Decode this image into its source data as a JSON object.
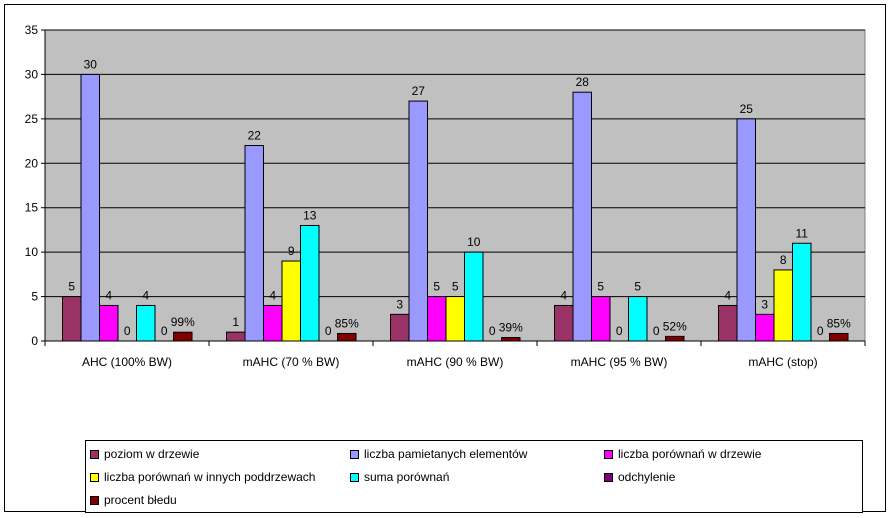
{
  "chart_data": {
    "type": "bar",
    "categories": [
      "AHC (100% BW)",
      "mAHC (70 % BW)",
      "mAHC (90 % BW)",
      "mAHC (95 % BW)",
      "mAHC (stop)"
    ],
    "ylim": [
      0,
      35
    ],
    "yticks": [
      0,
      5,
      10,
      15,
      20,
      25,
      30,
      35
    ],
    "grid": true,
    "plot_background": "#c0c0c0",
    "legend_position": "bottom",
    "series": [
      {
        "name": "poziom w drzewie",
        "color": "#993366",
        "values": [
          5,
          1,
          3,
          4,
          4
        ],
        "labels": [
          "5",
          "1",
          "3",
          "4",
          "4"
        ]
      },
      {
        "name": "liczba pamietanych elementów",
        "color": "#9999ff",
        "values": [
          30,
          22,
          27,
          28,
          25
        ],
        "labels": [
          "30",
          "22",
          "27",
          "28",
          "25"
        ]
      },
      {
        "name": "liczba porównań w drzewie",
        "color": "#ff00ff",
        "values": [
          4,
          4,
          5,
          5,
          3
        ],
        "labels": [
          "4",
          "4",
          "5",
          "5",
          "3"
        ]
      },
      {
        "name": "liczba porównań w innych poddrzewach",
        "color": "#ffff00",
        "values": [
          0,
          9,
          5,
          0,
          8
        ],
        "labels": [
          "0",
          "9",
          "5",
          "0",
          "8"
        ]
      },
      {
        "name": "suma porównań",
        "color": "#00ffff",
        "values": [
          4,
          13,
          10,
          5,
          11
        ],
        "labels": [
          "4",
          "13",
          "10",
          "5",
          "11"
        ]
      },
      {
        "name": "odchylenie",
        "color": "#800080",
        "values": [
          0,
          0,
          0,
          0,
          0
        ],
        "labels": [
          "0",
          "0",
          "0",
          "0",
          "0"
        ]
      },
      {
        "name": "procent błedu",
        "color": "#800000",
        "values": [
          0.99,
          0.85,
          0.39,
          0.52,
          0.85
        ],
        "labels": [
          "99%",
          "85%",
          "39%",
          "52%",
          "85%"
        ]
      }
    ]
  }
}
